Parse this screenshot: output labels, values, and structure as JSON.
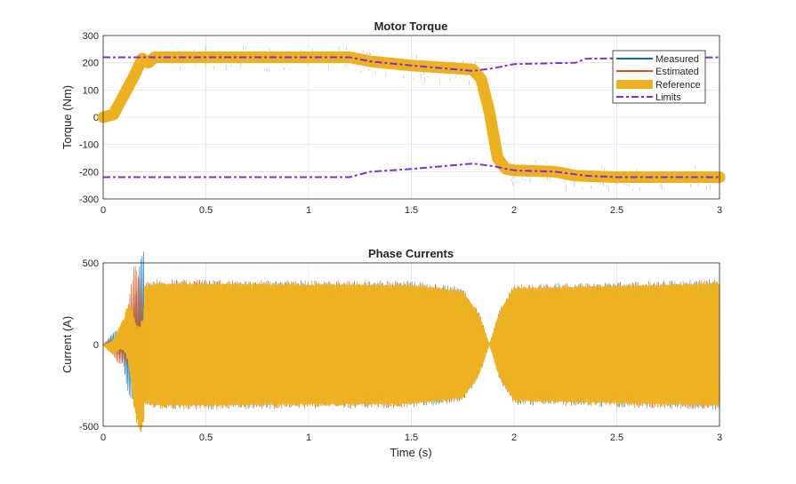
{
  "chart_data": [
    {
      "type": "line",
      "title": "Motor Torque",
      "xlabel": "",
      "ylabel": "Torque (Nm)",
      "xlim": [
        0,
        3
      ],
      "ylim": [
        -300,
        300
      ],
      "xticks": [
        "0",
        "0.5",
        "1",
        "1.5",
        "2",
        "2.5",
        "3"
      ],
      "yticks": [
        "300",
        "200",
        "100",
        "0",
        "-100",
        "-200",
        "-300"
      ],
      "grid": true,
      "legend": {
        "placement": "top-right",
        "entries": [
          "Measured",
          "Estimated",
          "Reference",
          "Limits"
        ]
      },
      "series": [
        {
          "name": "Reference",
          "color": "#EDB120",
          "x": [
            0,
            0.05,
            0.1,
            0.15,
            0.19,
            0.22,
            0.25,
            0.3,
            1.2,
            1.3,
            1.5,
            1.8,
            1.84,
            1.88,
            1.92,
            1.96,
            2.0,
            2.2,
            2.3,
            2.5,
            3.0
          ],
          "y": [
            0,
            10,
            80,
            150,
            215,
            200,
            220,
            220,
            220,
            205,
            190,
            175,
            140,
            20,
            -150,
            -190,
            -195,
            -200,
            -215,
            -220,
            -220
          ]
        },
        {
          "name": "Limits",
          "color": "#7E2FDB",
          "x": [
            0,
            1.2,
            1.3,
            1.5,
            1.8,
            1.9,
            2.0,
            2.3,
            2.35,
            3.0
          ],
          "y": [
            220,
            220,
            205,
            190,
            170,
            180,
            195,
            200,
            215,
            220
          ]
        },
        {
          "name": "Limits (lower)",
          "color": "#7E2FDB",
          "x": [
            0,
            1.2,
            1.3,
            1.5,
            1.8,
            1.9,
            2.0,
            2.2,
            2.35,
            2.5,
            3.0
          ],
          "y": [
            -220,
            -220,
            -200,
            -190,
            -170,
            -180,
            -195,
            -200,
            -215,
            -220,
            -220
          ]
        }
      ]
    },
    {
      "type": "line",
      "title": "Phase Currents",
      "xlabel": "Time (s)",
      "ylabel": "Current (A)",
      "xlim": [
        0,
        3
      ],
      "ylim": [
        -500,
        500
      ],
      "xticks": [
        "0",
        "0.5",
        "1",
        "1.5",
        "2",
        "2.5",
        "3"
      ],
      "yticks": [
        "500",
        "0",
        "-500"
      ],
      "grid": true,
      "envelope": {
        "x": [
          0,
          0.1,
          0.15,
          0.2,
          0.25,
          1.5,
          1.75,
          1.83,
          1.88,
          1.93,
          2.0,
          3.0
        ],
        "amplitude": [
          0,
          100,
          300,
          380,
          400,
          390,
          350,
          200,
          0,
          220,
          370,
          400
        ]
      },
      "series_colors": {
        "Measured": "#0072BD",
        "Estimated": "#D95319",
        "Reference": "#EDB120"
      }
    }
  ]
}
